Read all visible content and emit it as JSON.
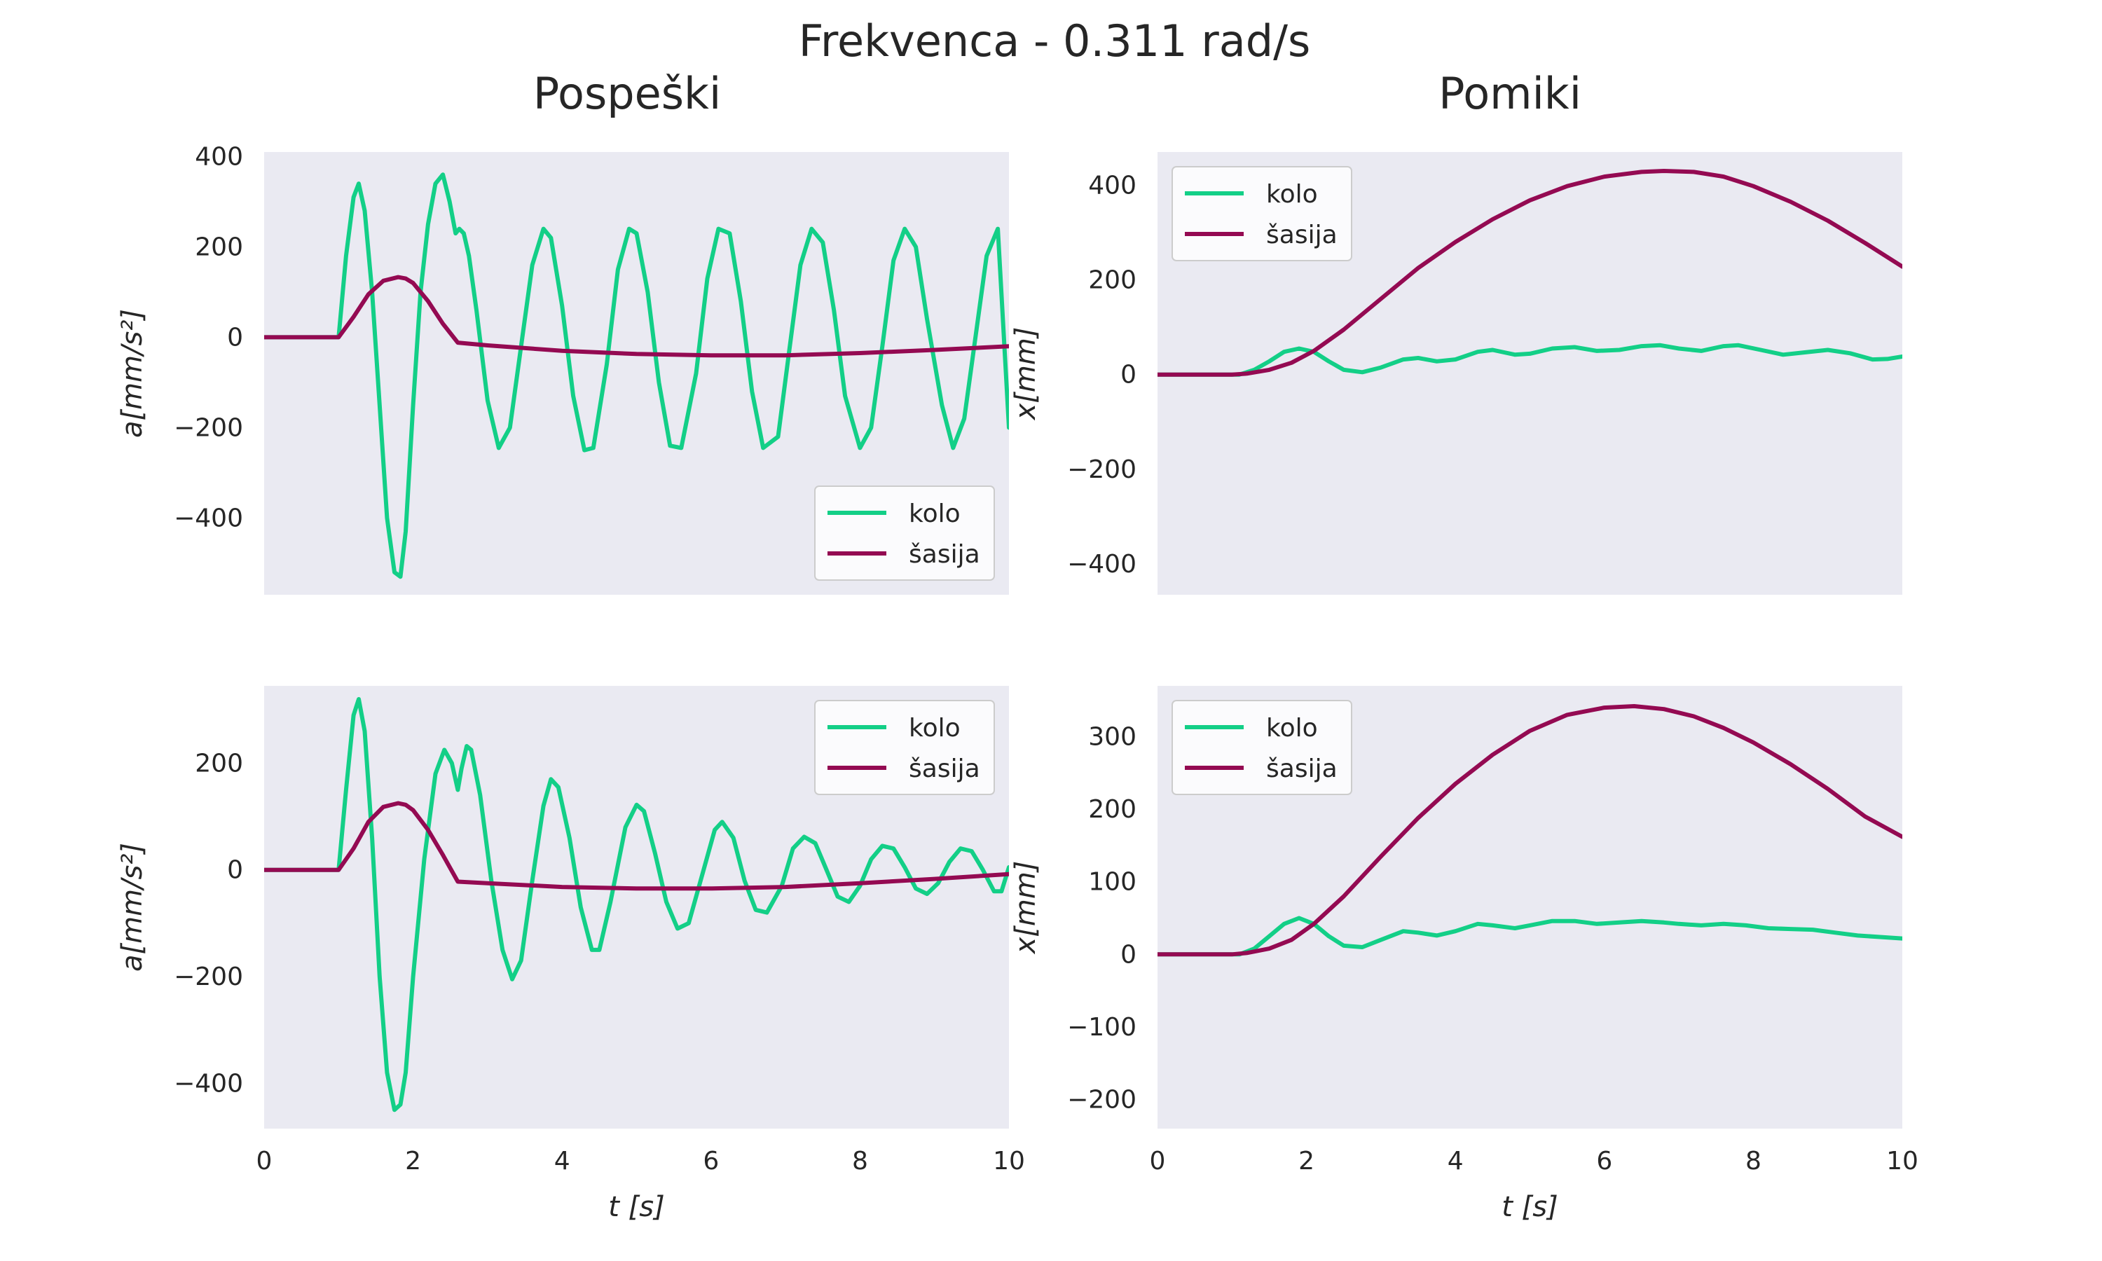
{
  "suptitle": "Frekvenca - 0.311 rad/s",
  "column_titles": [
    "Pospeški",
    "Pomiki"
  ],
  "colors": {
    "kolo": "#13cf87",
    "sasija": "#940a52",
    "panel_bg": "#eaeaf2"
  },
  "chart_data": [
    {
      "type": "line",
      "ylabel": "a[mm/s²]",
      "xlabel": "",
      "xlim": [
        0,
        10
      ],
      "ylim": [
        -570,
        410
      ],
      "yticks": [
        -400,
        -200,
        0,
        200,
        400
      ],
      "legend": "lower-right",
      "grid": false,
      "series": [
        {
          "name": "kolo",
          "x": [
            0,
            1.0,
            1.1,
            1.2,
            1.27,
            1.35,
            1.45,
            1.55,
            1.65,
            1.75,
            1.83,
            1.9,
            2.0,
            2.1,
            2.2,
            2.3,
            2.4,
            2.49,
            2.57,
            2.62,
            2.68,
            2.75,
            2.85,
            3.0,
            3.15,
            3.3,
            3.45,
            3.6,
            3.75,
            3.85,
            4.0,
            4.15,
            4.3,
            4.42,
            4.6,
            4.75,
            4.9,
            5.0,
            5.15,
            5.3,
            5.45,
            5.6,
            5.8,
            5.95,
            6.1,
            6.25,
            6.4,
            6.55,
            6.7,
            6.9,
            7.05,
            7.2,
            7.35,
            7.5,
            7.65,
            7.8,
            8.0,
            8.15,
            8.3,
            8.45,
            8.6,
            8.75,
            8.9,
            9.1,
            9.25,
            9.4,
            9.55,
            9.7,
            9.85,
            10.0
          ],
          "values": [
            0,
            0,
            180,
            310,
            340,
            280,
            100,
            -150,
            -400,
            -520,
            -530,
            -430,
            -150,
            100,
            250,
            340,
            360,
            300,
            230,
            240,
            230,
            180,
            60,
            -140,
            -245,
            -200,
            -20,
            160,
            240,
            220,
            70,
            -130,
            -250,
            -245,
            -60,
            150,
            240,
            230,
            100,
            -100,
            -240,
            -245,
            -80,
            130,
            240,
            230,
            80,
            -120,
            -245,
            -220,
            -30,
            160,
            240,
            210,
            60,
            -130,
            -245,
            -200,
            -20,
            170,
            240,
            200,
            40,
            -150,
            -245,
            -180,
            0,
            180,
            240,
            -200
          ]
        },
        {
          "name": "šasija",
          "x": [
            0,
            1.0,
            1.2,
            1.4,
            1.6,
            1.8,
            1.9,
            2.0,
            2.2,
            2.4,
            2.6,
            3.0,
            4.0,
            5.0,
            6.0,
            7.0,
            8.0,
            9.0,
            10.0
          ],
          "values": [
            0,
            0,
            45,
            95,
            125,
            133,
            130,
            120,
            80,
            30,
            -12,
            -18,
            -30,
            -37,
            -40,
            -40,
            -35,
            -28,
            -20
          ]
        }
      ]
    },
    {
      "type": "line",
      "ylabel": "x[mm]",
      "xlabel": "",
      "xlim": [
        0,
        10
      ],
      "ylim": [
        -465,
        470
      ],
      "yticks": [
        -400,
        -200,
        0,
        200,
        400
      ],
      "legend": "upper-left",
      "grid": false,
      "series": [
        {
          "name": "kolo",
          "x": [
            0,
            1.1,
            1.3,
            1.5,
            1.7,
            1.9,
            2.1,
            2.3,
            2.5,
            2.75,
            3.0,
            3.3,
            3.5,
            3.75,
            4.0,
            4.3,
            4.5,
            4.8,
            5.0,
            5.3,
            5.6,
            5.9,
            6.2,
            6.5,
            6.75,
            7.0,
            7.3,
            7.6,
            7.8,
            8.1,
            8.4,
            8.7,
            9.0,
            9.3,
            9.6,
            9.8,
            10.0
          ],
          "values": [
            0,
            0,
            10,
            28,
            48,
            55,
            48,
            28,
            10,
            5,
            15,
            32,
            35,
            28,
            32,
            48,
            52,
            42,
            44,
            55,
            58,
            50,
            52,
            60,
            62,
            55,
            50,
            60,
            62,
            52,
            42,
            47,
            52,
            45,
            32,
            33,
            38
          ]
        },
        {
          "name": "šasija",
          "x": [
            0,
            1.0,
            1.2,
            1.5,
            1.8,
            2.1,
            2.5,
            3.0,
            3.5,
            4.0,
            4.5,
            5.0,
            5.5,
            6.0,
            6.5,
            6.8,
            7.2,
            7.6,
            8.0,
            8.5,
            9.0,
            9.5,
            10.0
          ],
          "values": [
            0,
            0,
            2,
            10,
            25,
            50,
            95,
            160,
            225,
            280,
            328,
            368,
            398,
            418,
            428,
            430,
            428,
            418,
            398,
            365,
            325,
            278,
            228
          ]
        }
      ]
    },
    {
      "type": "line",
      "ylabel": "a[mm/s²]",
      "xlabel": "t [s]",
      "xlim": [
        0,
        10
      ],
      "ylim": [
        -485,
        345
      ],
      "xticks": [
        0,
        2,
        4,
        6,
        8,
        10
      ],
      "yticks": [
        -400,
        -200,
        0,
        200
      ],
      "legend": "upper-right",
      "grid": false,
      "series": [
        {
          "name": "kolo",
          "x": [
            0,
            1.0,
            1.1,
            1.2,
            1.27,
            1.35,
            1.45,
            1.55,
            1.65,
            1.75,
            1.83,
            1.9,
            2.0,
            2.15,
            2.3,
            2.42,
            2.52,
            2.6,
            2.65,
            2.72,
            2.78,
            2.9,
            3.05,
            3.2,
            3.33,
            3.45,
            3.6,
            3.75,
            3.85,
            3.95,
            4.1,
            4.25,
            4.4,
            4.5,
            4.65,
            4.85,
            5.0,
            5.1,
            5.25,
            5.4,
            5.55,
            5.7,
            5.9,
            6.05,
            6.15,
            6.3,
            6.45,
            6.6,
            6.75,
            6.95,
            7.1,
            7.25,
            7.4,
            7.55,
            7.7,
            7.85,
            8.0,
            8.15,
            8.3,
            8.45,
            8.6,
            8.75,
            8.9,
            9.05,
            9.2,
            9.35,
            9.5,
            9.65,
            9.8,
            9.9,
            10.0
          ],
          "values": [
            0,
            0,
            150,
            290,
            320,
            260,
            60,
            -200,
            -380,
            -450,
            -440,
            -380,
            -200,
            20,
            180,
            225,
            200,
            150,
            190,
            232,
            225,
            140,
            -20,
            -150,
            -205,
            -170,
            -20,
            120,
            170,
            155,
            60,
            -70,
            -150,
            -150,
            -60,
            80,
            122,
            110,
            30,
            -60,
            -110,
            -100,
            0,
            75,
            90,
            60,
            -20,
            -75,
            -80,
            -30,
            40,
            62,
            50,
            0,
            -50,
            -60,
            -30,
            20,
            45,
            40,
            5,
            -35,
            -45,
            -25,
            15,
            40,
            35,
            0,
            -40,
            -40,
            5
          ]
        },
        {
          "name": "šasija",
          "x": [
            0,
            1.0,
            1.2,
            1.4,
            1.6,
            1.8,
            1.9,
            2.0,
            2.2,
            2.4,
            2.6,
            3.0,
            4.0,
            5.0,
            6.0,
            7.0,
            8.0,
            9.0,
            10.0
          ],
          "values": [
            0,
            0,
            40,
            90,
            118,
            125,
            122,
            112,
            75,
            28,
            -22,
            -25,
            -32,
            -35,
            -35,
            -32,
            -25,
            -17,
            -8
          ]
        }
      ]
    },
    {
      "type": "line",
      "ylabel": "x[mm]",
      "xlabel": "t [s]",
      "xlim": [
        0,
        10
      ],
      "ylim": [
        -240,
        370
      ],
      "xticks": [
        0,
        2,
        4,
        6,
        8,
        10
      ],
      "yticks": [
        -200,
        -100,
        0,
        100,
        200,
        300
      ],
      "legend": "upper-left",
      "grid": false,
      "series": [
        {
          "name": "kolo",
          "x": [
            0,
            1.1,
            1.3,
            1.5,
            1.7,
            1.9,
            2.1,
            2.3,
            2.5,
            2.75,
            3.0,
            3.3,
            3.5,
            3.75,
            4.0,
            4.3,
            4.5,
            4.8,
            5.0,
            5.3,
            5.6,
            5.9,
            6.2,
            6.5,
            6.8,
            7.0,
            7.3,
            7.6,
            7.9,
            8.2,
            8.5,
            8.8,
            9.1,
            9.4,
            9.7,
            10.0
          ],
          "values": [
            0,
            0,
            8,
            25,
            42,
            50,
            42,
            25,
            12,
            10,
            20,
            32,
            30,
            26,
            32,
            42,
            40,
            36,
            40,
            46,
            46,
            42,
            44,
            46,
            44,
            42,
            40,
            42,
            40,
            36,
            35,
            34,
            30,
            26,
            24,
            22
          ]
        },
        {
          "name": "šasija",
          "x": [
            0,
            1.0,
            1.2,
            1.5,
            1.8,
            2.1,
            2.5,
            3.0,
            3.5,
            4.0,
            4.5,
            5.0,
            5.5,
            6.0,
            6.4,
            6.8,
            7.2,
            7.6,
            8.0,
            8.5,
            9.0,
            9.5,
            10.0
          ],
          "values": [
            0,
            0,
            2,
            8,
            20,
            42,
            80,
            135,
            188,
            235,
            275,
            308,
            330,
            340,
            342,
            338,
            328,
            312,
            292,
            262,
            228,
            190,
            162
          ]
        }
      ]
    }
  ]
}
